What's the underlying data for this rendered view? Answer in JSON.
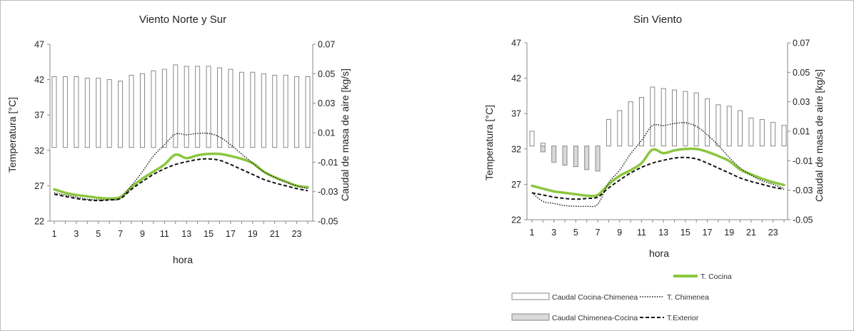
{
  "chart_data": [
    {
      "type": "bar+line",
      "title": "Viento Norte y Sur",
      "xlabel": "hora",
      "ylabel": "Temperatura [°C]",
      "y2label": "Caudal de masa de aire [kg/s]",
      "x": [
        1,
        2,
        3,
        4,
        5,
        6,
        7,
        8,
        9,
        10,
        11,
        12,
        13,
        14,
        15,
        16,
        17,
        18,
        19,
        20,
        21,
        22,
        23,
        24
      ],
      "xticks": [
        "1",
        "3",
        "5",
        "7",
        "9",
        "11",
        "13",
        "15",
        "17",
        "19",
        "21",
        "23"
      ],
      "ylim": [
        22,
        47
      ],
      "yticks": [
        "22",
        "27",
        "32",
        "37",
        "42",
        "47"
      ],
      "y2lim": [
        -0.05,
        0.07
      ],
      "y2ticks": [
        "-0.05",
        "-0.03",
        "-0.01",
        "0.01",
        "0.03",
        "0.05",
        "0.07"
      ],
      "series": [
        {
          "name": "Caudal Cocina-Chimenea",
          "kind": "bar",
          "axis": "y2",
          "values": [
            0.048,
            0.048,
            0.048,
            0.047,
            0.047,
            0.046,
            0.045,
            0.049,
            0.05,
            0.052,
            0.053,
            0.056,
            0.055,
            0.055,
            0.055,
            0.054,
            0.053,
            0.051,
            0.051,
            0.05,
            0.049,
            0.049,
            0.048,
            0.048
          ]
        },
        {
          "name": "Caudal Chimenea-Cocina",
          "kind": "bar",
          "axis": "y2",
          "values": [
            0,
            0,
            0,
            0,
            0,
            0,
            0,
            0,
            0,
            0,
            0,
            0,
            0,
            0,
            0,
            0,
            0,
            0,
            0,
            0,
            0,
            0,
            0,
            0
          ]
        },
        {
          "name": "T. Cocina",
          "kind": "line",
          "axis": "y",
          "values": [
            26.5,
            26.0,
            25.7,
            25.5,
            25.3,
            25.2,
            25.4,
            26.8,
            28.0,
            29.0,
            30.0,
            31.4,
            30.9,
            31.3,
            31.5,
            31.5,
            31.2,
            30.8,
            30.2,
            29.0,
            28.2,
            27.6,
            27.0,
            26.8
          ]
        },
        {
          "name": "T. Chimenea",
          "kind": "line",
          "axis": "y",
          "values": [
            26.0,
            25.7,
            25.4,
            25.1,
            25.0,
            25.0,
            25.2,
            27.0,
            29.0,
            31.2,
            32.8,
            34.3,
            34.2,
            34.4,
            34.4,
            33.9,
            32.8,
            31.5,
            30.2,
            29.0,
            28.2,
            27.5,
            27.0,
            26.6
          ]
        },
        {
          "name": "T.Exterior",
          "kind": "line",
          "axis": "y",
          "values": [
            25.8,
            25.5,
            25.2,
            25.0,
            24.9,
            25.0,
            25.2,
            26.5,
            27.6,
            28.6,
            29.4,
            30.0,
            30.4,
            30.7,
            30.8,
            30.6,
            30.0,
            29.3,
            28.6,
            27.9,
            27.4,
            27.0,
            26.6,
            26.3
          ]
        }
      ]
    },
    {
      "type": "bar+line",
      "title": "Sin Viento",
      "xlabel": "hora",
      "ylabel": "Temperatura [°C]",
      "y2label": "Caudal de masa de aire [kg/s]",
      "x": [
        1,
        2,
        3,
        4,
        5,
        6,
        7,
        8,
        9,
        10,
        11,
        12,
        13,
        14,
        15,
        16,
        17,
        18,
        19,
        20,
        21,
        22,
        23,
        24
      ],
      "xticks": [
        "1",
        "3",
        "5",
        "7",
        "9",
        "11",
        "13",
        "15",
        "17",
        "19",
        "21",
        "23"
      ],
      "ylim": [
        22,
        47
      ],
      "yticks": [
        "22",
        "27",
        "32",
        "37",
        "42",
        "47"
      ],
      "y2lim": [
        -0.05,
        0.07
      ],
      "y2ticks": [
        "-0.05",
        "-0.03",
        "-0.01",
        "0.01",
        "0.03",
        "0.05",
        "0.07"
      ],
      "legend_position": "bottom-right",
      "series": [
        {
          "name": "Caudal Cocina-Chimenea",
          "kind": "bar",
          "axis": "y2",
          "values": [
            0.01,
            0.002,
            0,
            0,
            0,
            0,
            0,
            0.018,
            0.024,
            0.03,
            0.033,
            0.04,
            0.039,
            0.038,
            0.037,
            0.036,
            0.032,
            0.028,
            0.027,
            0.024,
            0.019,
            0.018,
            0.016,
            0.014
          ]
        },
        {
          "name": "Caudal Chimenea-Cocina",
          "kind": "bar",
          "axis": "y2",
          "values": [
            0,
            -0.004,
            -0.011,
            -0.013,
            -0.014,
            -0.016,
            -0.017,
            0,
            0,
            0,
            0,
            0,
            0,
            0,
            0,
            0,
            0,
            0,
            0,
            0,
            0,
            0,
            0,
            0
          ]
        },
        {
          "name": "T. Cocina",
          "kind": "line",
          "axis": "y",
          "values": [
            26.8,
            26.4,
            26.0,
            25.8,
            25.6,
            25.4,
            25.5,
            27.0,
            28.2,
            29.0,
            30.0,
            31.9,
            31.4,
            31.8,
            32.0,
            32.0,
            31.6,
            31.0,
            30.3,
            29.1,
            28.4,
            27.8,
            27.3,
            26.9
          ]
        },
        {
          "name": "T. Chimenea",
          "kind": "line",
          "axis": "y",
          "values": [
            25.8,
            24.6,
            24.3,
            24.0,
            23.9,
            23.9,
            24.2,
            27.2,
            29.0,
            31.3,
            33.2,
            35.3,
            35.3,
            35.6,
            35.7,
            35.2,
            34.0,
            32.5,
            30.8,
            29.3,
            28.3,
            27.5,
            27.0,
            26.4
          ]
        },
        {
          "name": "T.Exterior",
          "kind": "line",
          "axis": "y",
          "values": [
            25.8,
            25.5,
            25.2,
            25.0,
            24.9,
            25.0,
            25.2,
            26.5,
            27.6,
            28.6,
            29.4,
            30.0,
            30.4,
            30.7,
            30.8,
            30.6,
            30.0,
            29.3,
            28.6,
            27.9,
            27.4,
            27.0,
            26.6,
            26.3
          ]
        }
      ]
    }
  ],
  "legend": {
    "t_cocina": "T. Cocina",
    "caudal_cc": "Caudal Cocina-Chimenea",
    "t_chimenea": "T. Chimenea",
    "caudal_chc": "Caudal Chimenea-Cocina",
    "t_exterior": "T.Exterior"
  },
  "colors": {
    "t_cocina": "#8cc63f",
    "t_chimenea": "#222222",
    "t_exterior": "#111111",
    "bar_fill_cc": "#ffffff",
    "bar_fill_chc": "#d9d9d9",
    "bar_stroke": "#888888",
    "axis": "#888888"
  }
}
